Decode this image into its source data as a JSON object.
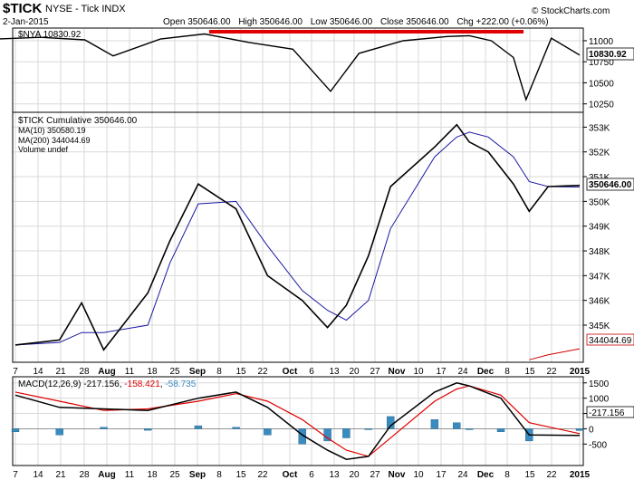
{
  "header": {
    "symbol": "$TICK",
    "exchange_name": "NYSE - Tick INDX",
    "date": "2-Jan-2015",
    "watermark": "© StockCharts.com",
    "open_label": "Open",
    "open_value": "350646.00",
    "high_label": "High",
    "high_value": "350646.00",
    "low_label": "Low",
    "low_value": "350646.00",
    "close_label": "Close",
    "close_value": "350646.00",
    "chg_label": "Chg",
    "chg_value": "+222.00 (+0.06%)"
  },
  "colors": {
    "price": "#000000",
    "ma10": "#1a1aa0",
    "ma200": "#cc0000",
    "down": "#d40000",
    "hist": "#3a8cc0",
    "signal": "#e00000",
    "annotation": "#e00000"
  },
  "x_ticks": [
    "7",
    "14",
    "21",
    "28",
    "Aug",
    "11",
    "18",
    "25",
    "Sep",
    "8",
    "15",
    "22",
    "Oct",
    "6",
    "13",
    "20",
    "27",
    "Nov",
    "10",
    "17",
    "24",
    "Dec",
    "8",
    "15",
    "22",
    "2015"
  ],
  "chart_data": [
    {
      "type": "line",
      "legend": "$NYA 10830.92",
      "last_value_label": "10830.92",
      "y_ticks": [
        "11000",
        "10750",
        "10500",
        "10250"
      ],
      "ylim": [
        10150,
        11150
      ],
      "x": [
        "Jul 1",
        "Jul 15",
        "Jul 29",
        "Aug 7",
        "Aug 22",
        "Sep 5",
        "Sep 19",
        "Oct 3",
        "Oct 15",
        "Oct 24",
        "Nov 7",
        "Nov 21",
        "Nov 28",
        "Dec 5",
        "Dec 12",
        "Dec 16",
        "Dec 24",
        "Jan 2"
      ],
      "values": [
        11020,
        11040,
        11010,
        10820,
        11020,
        11080,
        10980,
        10900,
        10400,
        10850,
        11000,
        11050,
        11060,
        11000,
        10800,
        10300,
        11030,
        10830
      ]
    },
    {
      "type": "line",
      "legend": "$TICK Cumulative 350646.00",
      "ma10_label": "MA(10) 350580.19",
      "ma200_label": "MA(200) 344044.69",
      "volume_label": "Volume undef",
      "last_value_label": "350646.00",
      "ma200_last_label": "344044.69",
      "y_ticks": [
        "353K",
        "352K",
        "351K",
        "350K",
        "349K",
        "348K",
        "347K",
        "346K",
        "345K"
      ],
      "ylim": [
        343500,
        353600
      ],
      "x": [
        "Jul 7",
        "Jul 21",
        "Jul 28",
        "Aug 4",
        "Aug 18",
        "Aug 25",
        "Sep 3",
        "Sep 15",
        "Sep 25",
        "Oct 6",
        "Oct 14",
        "Oct 20",
        "Oct 27",
        "Nov 3",
        "Nov 17",
        "Nov 24",
        "Nov 28",
        "Dec 4",
        "Dec 12",
        "Dec 17",
        "Dec 23",
        "Jan 2"
      ],
      "series": [
        {
          "name": "$TICK Cumulative",
          "values": [
            344200,
            344400,
            345900,
            344000,
            346300,
            348400,
            350700,
            349700,
            347000,
            346000,
            344900,
            345800,
            347800,
            350600,
            352200,
            353100,
            352400,
            352000,
            350700,
            349600,
            350600,
            350646
          ]
        },
        {
          "name": "MA(10)",
          "values": [
            344200,
            344300,
            344700,
            344700,
            345000,
            347500,
            349900,
            350000,
            348200,
            346400,
            345600,
            345200,
            346000,
            348900,
            351800,
            352600,
            352800,
            352600,
            351800,
            350800,
            350600,
            350580
          ]
        },
        {
          "name": "MA(200)",
          "values": [
            null,
            null,
            null,
            null,
            null,
            null,
            null,
            null,
            null,
            null,
            null,
            null,
            null,
            null,
            null,
            null,
            null,
            null,
            null,
            343600,
            343800,
            344045
          ]
        }
      ]
    },
    {
      "type": "line",
      "legend_name": "MACD(12,26,9)",
      "legend_macd": "-217.156",
      "legend_signal": "-158.421",
      "legend_hist": "-58.735",
      "last_value_label": "-217.156",
      "y_ticks": [
        "1500",
        "1000",
        "500",
        "0",
        "-500"
      ],
      "ylim": [
        -1200,
        1700
      ],
      "x": [
        "Jul 7",
        "Jul 21",
        "Aug 4",
        "Aug 18",
        "Sep 3",
        "Sep 15",
        "Sep 25",
        "Oct 6",
        "Oct 14",
        "Oct 20",
        "Oct 27",
        "Nov 3",
        "Nov 17",
        "Nov 24",
        "Nov 28",
        "Dec 8",
        "Dec 17",
        "Jan 2"
      ],
      "series": [
        {
          "name": "MACD",
          "values": [
            1100,
            700,
            650,
            600,
            1000,
            1200,
            700,
            -200,
            -700,
            -1000,
            -900,
            100,
            1200,
            1500,
            1400,
            1000,
            -200,
            -217
          ]
        },
        {
          "name": "Signal",
          "values": [
            1200,
            900,
            600,
            650,
            900,
            1150,
            900,
            300,
            -300,
            -700,
            -900,
            -300,
            900,
            1300,
            1400,
            1100,
            200,
            -158
          ]
        },
        {
          "name": "Histogram",
          "values": [
            -100,
            -200,
            50,
            -50,
            100,
            50,
            -200,
            -500,
            -400,
            -300,
            0,
            400,
            300,
            200,
            0,
            -100,
            -400,
            -59
          ]
        }
      ]
    }
  ]
}
